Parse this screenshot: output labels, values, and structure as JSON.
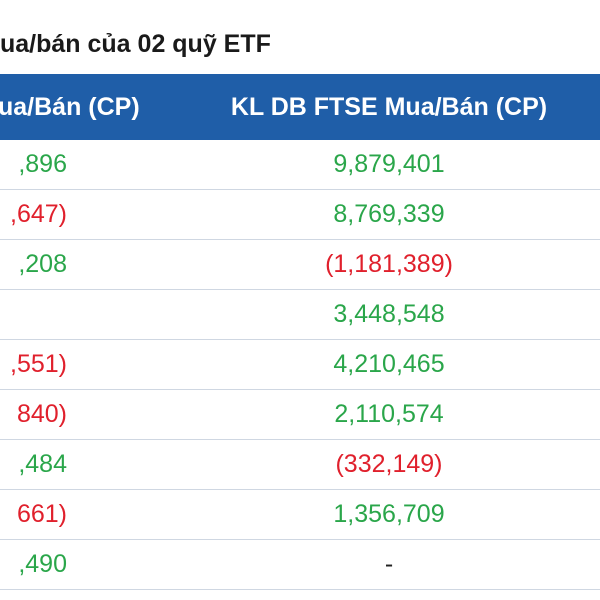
{
  "title": "ua/bán của 02 quỹ ETF",
  "header": {
    "left": "ua/Bán (CP)",
    "right": "KL DB FTSE Mua/Bán (CP)"
  },
  "rows": [
    {
      "left": ",896",
      "left_sign": "pos",
      "right": "9,879,401",
      "right_sign": "pos"
    },
    {
      "left": ",647)",
      "left_sign": "neg",
      "right": "8,769,339",
      "right_sign": "pos"
    },
    {
      "left": ",208",
      "left_sign": "pos",
      "right": "(1,181,389)",
      "right_sign": "neg"
    },
    {
      "left": "",
      "left_sign": "neu",
      "right": "3,448,548",
      "right_sign": "pos"
    },
    {
      "left": ",551)",
      "left_sign": "neg",
      "right": "4,210,465",
      "right_sign": "pos"
    },
    {
      "left": "840)",
      "left_sign": "neg",
      "right": "2,110,574",
      "right_sign": "pos"
    },
    {
      "left": ",484",
      "left_sign": "pos",
      "right": "(332,149)",
      "right_sign": "neg"
    },
    {
      "left": "661)",
      "left_sign": "neg",
      "right": "1,356,709",
      "right_sign": "pos"
    },
    {
      "left": ",490",
      "left_sign": "pos",
      "right": "-",
      "right_sign": "neu"
    }
  ],
  "colors": {
    "header_bg": "#1f5ea8",
    "positive": "#2aa64a",
    "negative": "#e0202c"
  }
}
